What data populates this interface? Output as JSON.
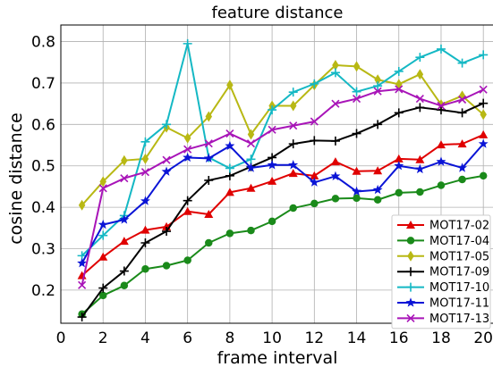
{
  "chart_data": {
    "type": "line",
    "title": "feature distance",
    "xlabel": "frame interval",
    "ylabel": "cosine distance",
    "xlim": [
      0,
      20.5
    ],
    "ylim": [
      0.12,
      0.84
    ],
    "xticks": [
      "0",
      "2",
      "4",
      "6",
      "8",
      "10",
      "12",
      "14",
      "16",
      "18",
      "20"
    ],
    "yticks": [
      "0.2",
      "0.3",
      "0.4",
      "0.5",
      "0.6",
      "0.7",
      "0.8"
    ],
    "legend_position": "bottom-right",
    "x": [
      1,
      2,
      3,
      4,
      5,
      6,
      7,
      8,
      9,
      10,
      11,
      12,
      13,
      14,
      15,
      16,
      17,
      18,
      19,
      20
    ],
    "series": [
      {
        "name": "MOT17-02",
        "color": "#e00000",
        "marker": "triangle",
        "values": [
          0.235,
          0.28,
          0.318,
          0.345,
          0.353,
          0.39,
          0.383,
          0.436,
          0.446,
          0.463,
          0.482,
          0.476,
          0.51,
          0.487,
          0.488,
          0.517,
          0.515,
          0.551,
          0.553,
          0.575
        ]
      },
      {
        "name": "MOT17-04",
        "color": "#1a8a1a",
        "marker": "circle",
        "values": [
          0.142,
          0.187,
          0.211,
          0.251,
          0.259,
          0.272,
          0.314,
          0.337,
          0.344,
          0.366,
          0.398,
          0.409,
          0.421,
          0.422,
          0.418,
          0.435,
          0.437,
          0.453,
          0.467,
          0.476
        ]
      },
      {
        "name": "MOT17-05",
        "color": "#b8b814",
        "marker": "diamond",
        "values": [
          0.405,
          0.462,
          0.513,
          0.517,
          0.593,
          0.567,
          0.619,
          0.695,
          0.576,
          0.645,
          0.645,
          0.695,
          0.743,
          0.74,
          0.708,
          0.697,
          0.721,
          0.648,
          0.669,
          0.624
        ]
      },
      {
        "name": "MOT17-09",
        "color": "#000000",
        "marker": "plus",
        "values": [
          0.135,
          0.205,
          0.246,
          0.314,
          0.342,
          0.416,
          0.465,
          0.476,
          0.498,
          0.52,
          0.553,
          0.561,
          0.56,
          0.578,
          0.6,
          0.628,
          0.641,
          0.635,
          0.628,
          0.651
        ]
      },
      {
        "name": "MOT17-10",
        "color": "#14b8c4",
        "marker": "plus",
        "values": [
          0.283,
          0.332,
          0.38,
          0.558,
          0.6,
          0.795,
          0.52,
          0.494,
          0.516,
          0.635,
          0.678,
          0.698,
          0.725,
          0.679,
          0.693,
          0.728,
          0.762,
          0.782,
          0.748,
          0.768
        ]
      },
      {
        "name": "MOT17-11",
        "color": "#0a14d6",
        "marker": "star",
        "values": [
          0.265,
          0.358,
          0.37,
          0.415,
          0.486,
          0.52,
          0.518,
          0.548,
          0.495,
          0.502,
          0.502,
          0.46,
          0.475,
          0.438,
          0.442,
          0.5,
          0.492,
          0.51,
          0.495,
          0.553
        ]
      },
      {
        "name": "MOT17-13",
        "color": "#a814b8",
        "marker": "x",
        "values": [
          0.212,
          0.446,
          0.47,
          0.485,
          0.514,
          0.54,
          0.554,
          0.578,
          0.554,
          0.587,
          0.597,
          0.607,
          0.65,
          0.662,
          0.68,
          0.685,
          0.662,
          0.645,
          0.66,
          0.684
        ]
      }
    ]
  }
}
